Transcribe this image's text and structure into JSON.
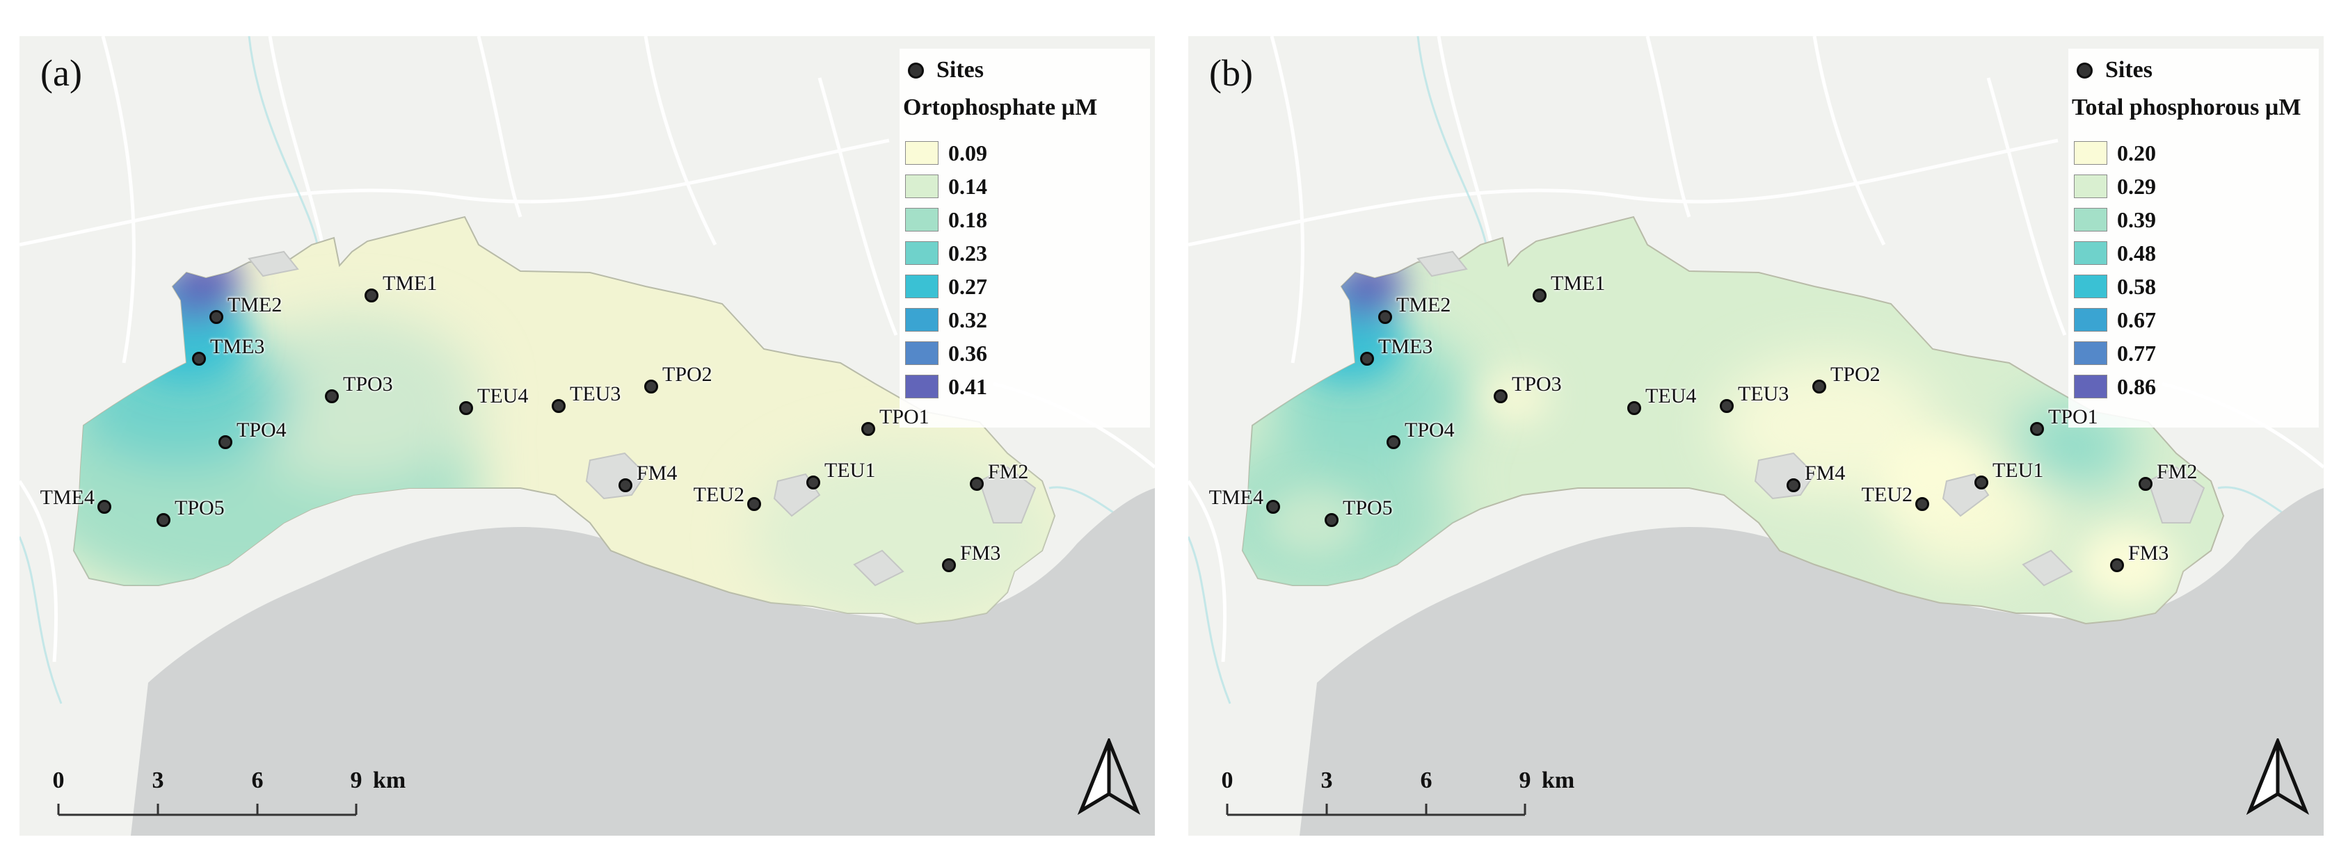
{
  "panel_a": {
    "label": "(a)",
    "legend": {
      "sites_label": "Sites",
      "title": "Ortophosphate µM",
      "items": [
        {
          "value": "0.09",
          "color": "#fafbd7"
        },
        {
          "value": "0.14",
          "color": "#d9efd0"
        },
        {
          "value": "0.18",
          "color": "#a4e0c8"
        },
        {
          "value": "0.23",
          "color": "#6fd2cb"
        },
        {
          "value": "0.27",
          "color": "#3ac1d4"
        },
        {
          "value": "0.32",
          "color": "#3aa4d2"
        },
        {
          "value": "0.36",
          "color": "#5488c9"
        },
        {
          "value": "0.41",
          "color": "#6265b9"
        }
      ]
    },
    "sites": [
      {
        "id": "TME1",
        "label": "TME1"
      },
      {
        "id": "TME2",
        "label": "TME2"
      },
      {
        "id": "TME3",
        "label": "TME3"
      },
      {
        "id": "TME4",
        "label": "TME4"
      },
      {
        "id": "TPO1",
        "label": "TPO1"
      },
      {
        "id": "TPO2",
        "label": "TPO2"
      },
      {
        "id": "TPO3",
        "label": "TPO3"
      },
      {
        "id": "TPO4",
        "label": "TPO4"
      },
      {
        "id": "TPO5",
        "label": "TPO5"
      },
      {
        "id": "TEU1",
        "label": "TEU1"
      },
      {
        "id": "TEU2",
        "label": "TEU2"
      },
      {
        "id": "TEU3",
        "label": "TEU3"
      },
      {
        "id": "TEU4",
        "label": "TEU4"
      },
      {
        "id": "FM2",
        "label": "FM2"
      },
      {
        "id": "FM3",
        "label": "FM3"
      },
      {
        "id": "FM4",
        "label": "FM4"
      }
    ]
  },
  "panel_b": {
    "label": "(b)",
    "legend": {
      "sites_label": "Sites",
      "title": "Total phosphorous µM",
      "items": [
        {
          "value": "0.20",
          "color": "#fafbd7"
        },
        {
          "value": "0.29",
          "color": "#d9efd0"
        },
        {
          "value": "0.39",
          "color": "#a4e0c8"
        },
        {
          "value": "0.48",
          "color": "#6fd2cb"
        },
        {
          "value": "0.58",
          "color": "#3ac1d4"
        },
        {
          "value": "0.67",
          "color": "#3aa4d2"
        },
        {
          "value": "0.77",
          "color": "#5488c9"
        },
        {
          "value": "0.86",
          "color": "#6265b9"
        }
      ]
    },
    "sites": [
      {
        "id": "TME1",
        "label": "TME1"
      },
      {
        "id": "TME2",
        "label": "TME2"
      },
      {
        "id": "TME3",
        "label": "TME3"
      },
      {
        "id": "TME4",
        "label": "TME4"
      },
      {
        "id": "TPO1",
        "label": "TPO1"
      },
      {
        "id": "TPO2",
        "label": "TPO2"
      },
      {
        "id": "TPO3",
        "label": "TPO3"
      },
      {
        "id": "TPO4",
        "label": "TPO4"
      },
      {
        "id": "TPO5",
        "label": "TPO5"
      },
      {
        "id": "TEU1",
        "label": "TEU1"
      },
      {
        "id": "TEU2",
        "label": "TEU2"
      },
      {
        "id": "TEU3",
        "label": "TEU3"
      },
      {
        "id": "TEU4",
        "label": "TEU4"
      },
      {
        "id": "FM2",
        "label": "FM2"
      },
      {
        "id": "FM3",
        "label": "FM3"
      },
      {
        "id": "FM4",
        "label": "FM4"
      }
    ]
  },
  "scale_bar": {
    "ticks": [
      "0",
      "3",
      "6",
      "9"
    ],
    "unit": "km"
  },
  "colors": {
    "sea": "#d1d3d3",
    "land": "#f1f2ef",
    "site_marker": "#3a3a3a"
  }
}
